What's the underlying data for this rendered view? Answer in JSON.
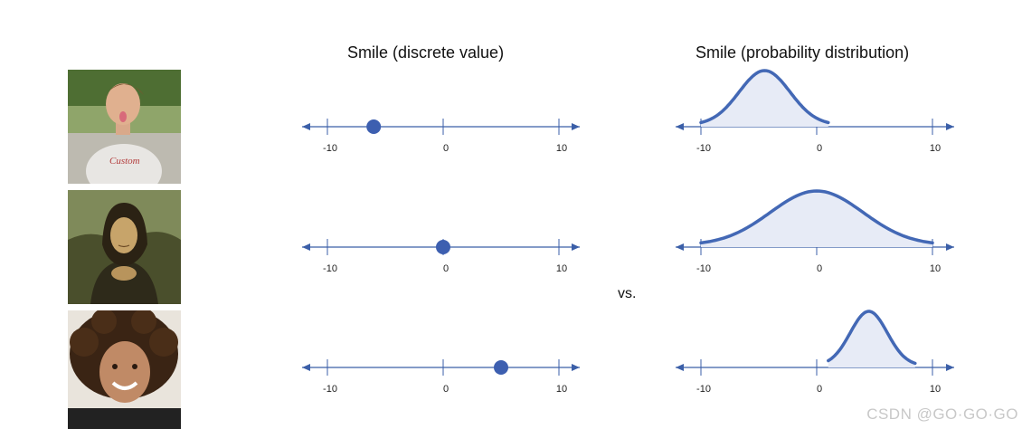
{
  "headings": {
    "discrete": "Smile (discrete value)",
    "probability": "Smile (probability distribution)"
  },
  "vs_label": "vs.",
  "watermark": "CSDN @GO·GO·GO",
  "axis": {
    "min": -10,
    "max": 10,
    "tick_labels": [
      "-10",
      "0",
      "10"
    ]
  },
  "colors": {
    "axis": "#3b5fa8",
    "marker": "#3d5fb0",
    "curve": "#4368b5",
    "fill": "#e7ebf6"
  },
  "rows": [
    {
      "photo": "boy-sticking-out-tongue",
      "discrete_value": -6,
      "distribution": {
        "mean": -4.5,
        "sd": 2.2,
        "from": -10,
        "to": 1
      }
    },
    {
      "photo": "mona-lisa-painting",
      "discrete_value": 0,
      "distribution": {
        "mean": 0,
        "sd": 4.0,
        "from": -10,
        "to": 10
      }
    },
    {
      "photo": "smiling-curly-haired-girl",
      "discrete_value": 5,
      "distribution": {
        "mean": 4.5,
        "sd": 1.6,
        "from": 1,
        "to": 8.5
      }
    }
  ]
}
